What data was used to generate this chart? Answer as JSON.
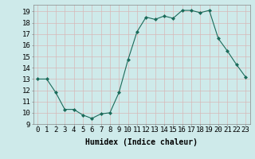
{
  "x": [
    0,
    1,
    2,
    3,
    4,
    5,
    6,
    7,
    8,
    9,
    10,
    11,
    12,
    13,
    14,
    15,
    16,
    17,
    18,
    19,
    20,
    21,
    22,
    23
  ],
  "y": [
    13,
    13,
    11.8,
    10.3,
    10.3,
    9.8,
    9.5,
    9.9,
    10.0,
    11.8,
    14.7,
    17.2,
    18.5,
    18.3,
    18.6,
    18.4,
    19.1,
    19.1,
    18.9,
    19.1,
    16.6,
    15.5,
    14.3,
    13.2
  ],
  "line_color": "#1a6b5a",
  "marker": "D",
  "markersize": 2.0,
  "linewidth": 0.8,
  "background_color": "#ceeaea",
  "grid_color": "#b8d8d8",
  "xlabel": "Humidex (Indice chaleur)",
  "xlim": [
    -0.5,
    23.5
  ],
  "ylim": [
    9,
    19.6
  ],
  "yticks": [
    9,
    10,
    11,
    12,
    13,
    14,
    15,
    16,
    17,
    18,
    19
  ],
  "xticks": [
    0,
    1,
    2,
    3,
    4,
    5,
    6,
    7,
    8,
    9,
    10,
    11,
    12,
    13,
    14,
    15,
    16,
    17,
    18,
    19,
    20,
    21,
    22,
    23
  ],
  "xlabel_fontsize": 7,
  "tick_fontsize": 6.5
}
